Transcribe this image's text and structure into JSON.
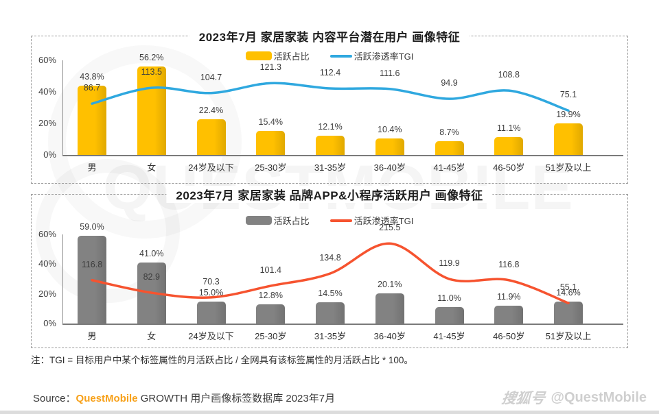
{
  "page": {
    "watermark_text": "QUESTMOBILE",
    "footnote": "注：TGI = 目标用户中某个标签属性的月活跃占比 / 全网具有该标签属性的月活跃占比 * 100。",
    "source": {
      "label": "Source：",
      "brand": "QuestMobile",
      "brand_color": "#F7A11A",
      "rest": " GROWTH 用户画像标签数据库 2023年7月"
    },
    "footer_watermark": {
      "logo": "搜狐号",
      "handle": "@QuestMobile"
    }
  },
  "chart_data": [
    {
      "type": "bar+line",
      "title": "2023年7月 家居家装 内容平台潜在用户 画像特征",
      "categories": [
        "男",
        "女",
        "24岁及以下",
        "25-30岁",
        "31-35岁",
        "36-40岁",
        "41-45岁",
        "46-50岁",
        "51岁及以上"
      ],
      "series": [
        {
          "name": "活跃占比",
          "type": "bar",
          "unit": "%",
          "color": "#FFC000",
          "values": [
            43.8,
            56.2,
            22.4,
            15.4,
            12.1,
            10.4,
            8.7,
            11.1,
            19.9
          ]
        },
        {
          "name": "活跃渗透率TGI",
          "type": "line",
          "color": "#2FA8DF",
          "values": [
            86.7,
            113.5,
            104.7,
            121.3,
            112.4,
            111.6,
            94.9,
            108.8,
            75.1
          ]
        }
      ],
      "y_ticks": [
        "0%",
        "20%",
        "40%",
        "60%"
      ],
      "bar_axis_max": 60,
      "line_axis_max": 160,
      "grid": false,
      "legend_position": "top"
    },
    {
      "type": "bar+line",
      "title": "2023年7月 家居家装 品牌APP&小程序活跃用户 画像特征",
      "categories": [
        "男",
        "女",
        "24岁及以下",
        "25-30岁",
        "31-35岁",
        "36-40岁",
        "41-45岁",
        "46-50岁",
        "51岁及以上"
      ],
      "series": [
        {
          "name": "活跃占比",
          "type": "bar",
          "unit": "%",
          "color": "#828282",
          "values": [
            59.0,
            41.0,
            15.0,
            12.8,
            14.5,
            20.1,
            11.0,
            11.9,
            14.6
          ]
        },
        {
          "name": "活跃渗透率TGI",
          "type": "line",
          "color": "#F6532F",
          "values": [
            116.8,
            82.9,
            70.3,
            101.4,
            134.8,
            215.5,
            119.9,
            116.8,
            55.1
          ]
        }
      ],
      "y_ticks": [
        "0%",
        "20%",
        "40%",
        "60%"
      ],
      "bar_axis_max": 60,
      "line_axis_max": 240,
      "grid": false,
      "legend_position": "top"
    }
  ]
}
